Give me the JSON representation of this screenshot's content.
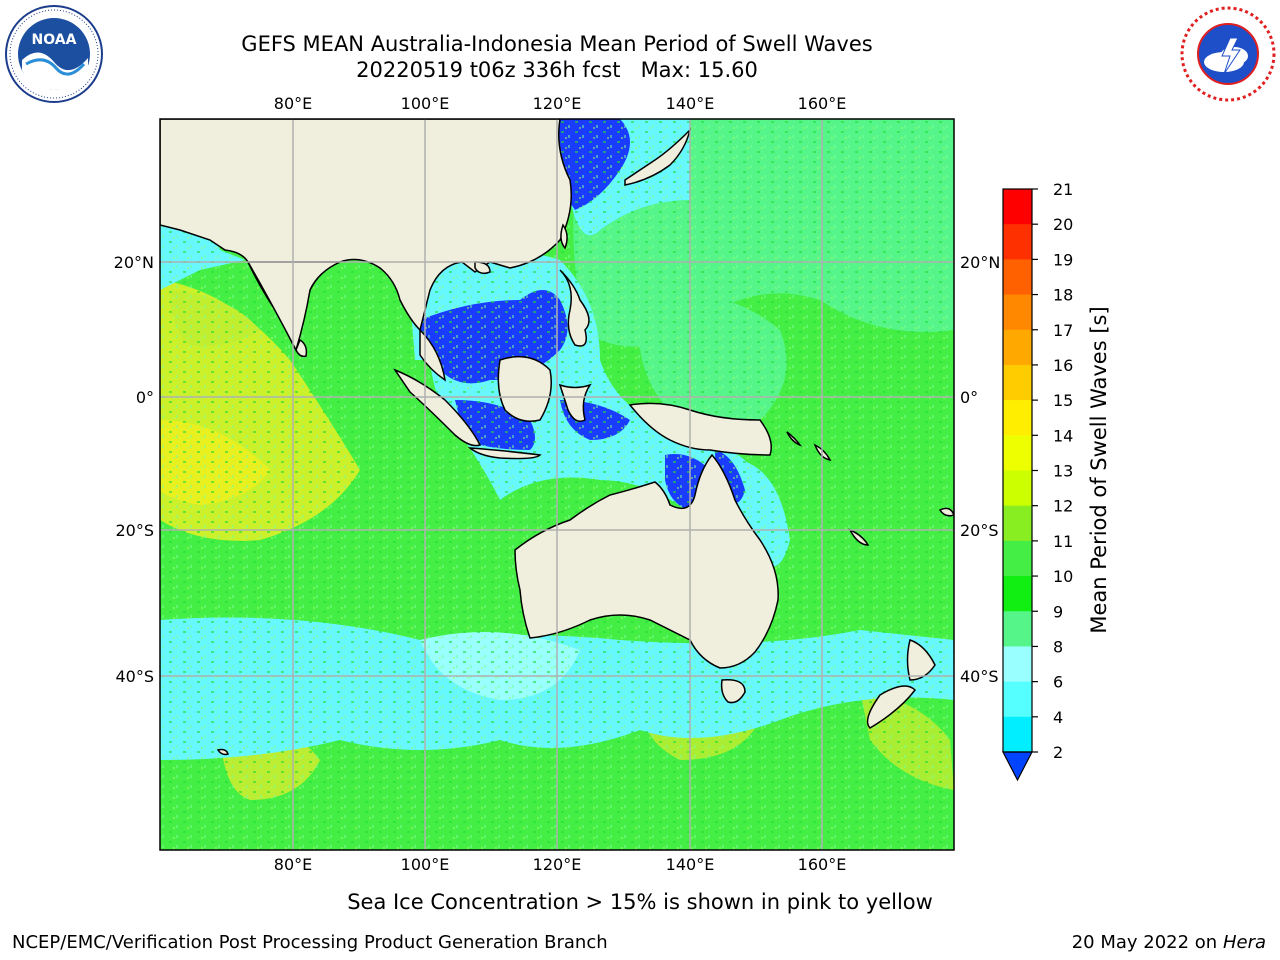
{
  "title": {
    "line1": "GEFS MEAN Australia-Indonesia Mean Period of Swell Waves",
    "line2": "20220519 t06z 336h fcst   Max: 15.60"
  },
  "map": {
    "lon_ticks": [
      "80°E",
      "100°E",
      "120°E",
      "140°E",
      "160°E"
    ],
    "lat_ticks": [
      "20°N",
      "0°",
      "20°S",
      "40°S"
    ],
    "colors": {
      "land": "#f0eedc",
      "ocean_green": "#44ee44",
      "ocean_light_green": "#55f58a",
      "ocean_cyan": "#66f7ff",
      "ocean_blue": "#1a3cff",
      "grid": "#b0b0b0"
    }
  },
  "colorbar": {
    "label": "Mean Period of Swell Waves [s]",
    "ticks": [
      "21",
      "20",
      "19",
      "18",
      "17",
      "16",
      "15",
      "14",
      "13",
      "12",
      "11",
      "10",
      "9",
      "8",
      "6",
      "4",
      "2"
    ],
    "colors": [
      "#ff0000",
      "#ff3000",
      "#ff6000",
      "#ff8800",
      "#ffa800",
      "#ffcc00",
      "#ffee00",
      "#eeff00",
      "#ccff00",
      "#88ee22",
      "#44ee44",
      "#11ee11",
      "#55f58a",
      "#99ffff",
      "#55ffff",
      "#00eeff",
      "#0088ff",
      "#0044ff"
    ]
  },
  "caption": "Sea Ice Concentration > 15% is shown in pink to yellow",
  "credits": {
    "left": "NCEP/EMC/Verification Post Processing Product Generation Branch",
    "right_date": "20 May 2022 on",
    "right_host": "Hera"
  },
  "logos": {
    "noaa_icon": "noaa-logo-icon",
    "nws_icon": "nws-logo-icon"
  }
}
